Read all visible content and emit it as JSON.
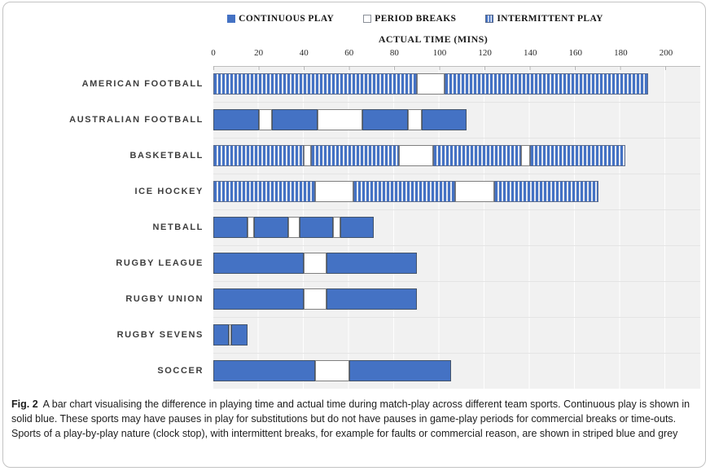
{
  "chart_data": {
    "type": "bar",
    "variant": "horizontal-stacked",
    "xlabel": "ACTUAL TIME (MINS)",
    "xlim": [
      0,
      200
    ],
    "x_ticks": [
      0,
      20,
      40,
      60,
      80,
      100,
      120,
      140,
      160,
      180,
      200
    ],
    "legend": [
      {
        "label": "CONTINUOUS PLAY",
        "swatch": "solid-blue"
      },
      {
        "label": "PERIOD BREAKS",
        "swatch": "white"
      },
      {
        "label": "INTERMITTENT PLAY",
        "swatch": "striped-blue"
      }
    ],
    "categories": [
      {
        "name": "AMERICAN FOOTBALL",
        "total_minutes": 192,
        "segments": [
          {
            "kind": "intermittent",
            "minutes": 90
          },
          {
            "kind": "break",
            "minutes": 12
          },
          {
            "kind": "intermittent",
            "minutes": 90
          }
        ]
      },
      {
        "name": "AUSTRALIAN FOOTBALL",
        "total_minutes": 112,
        "segments": [
          {
            "kind": "continuous",
            "minutes": 20
          },
          {
            "kind": "break",
            "minutes": 6
          },
          {
            "kind": "continuous",
            "minutes": 20
          },
          {
            "kind": "break",
            "minutes": 20
          },
          {
            "kind": "continuous",
            "minutes": 20
          },
          {
            "kind": "break",
            "minutes": 6
          },
          {
            "kind": "continuous",
            "minutes": 20
          }
        ]
      },
      {
        "name": "BASKETBALL",
        "total_minutes": 182,
        "segments": [
          {
            "kind": "intermittent",
            "minutes": 40
          },
          {
            "kind": "break",
            "minutes": 3
          },
          {
            "kind": "intermittent",
            "minutes": 39
          },
          {
            "kind": "break",
            "minutes": 15
          },
          {
            "kind": "intermittent",
            "minutes": 39
          },
          {
            "kind": "break",
            "minutes": 4
          },
          {
            "kind": "intermittent",
            "minutes": 42
          }
        ]
      },
      {
        "name": "ICE HOCKEY",
        "total_minutes": 170,
        "segments": [
          {
            "kind": "intermittent",
            "minutes": 45
          },
          {
            "kind": "break",
            "minutes": 17
          },
          {
            "kind": "intermittent",
            "minutes": 45
          },
          {
            "kind": "break",
            "minutes": 17
          },
          {
            "kind": "intermittent",
            "minutes": 46
          }
        ]
      },
      {
        "name": "NETBALL",
        "total_minutes": 71,
        "segments": [
          {
            "kind": "continuous",
            "minutes": 15
          },
          {
            "kind": "break",
            "minutes": 3
          },
          {
            "kind": "continuous",
            "minutes": 15
          },
          {
            "kind": "break",
            "minutes": 5
          },
          {
            "kind": "continuous",
            "minutes": 15
          },
          {
            "kind": "break",
            "minutes": 3
          },
          {
            "kind": "continuous",
            "minutes": 15
          }
        ]
      },
      {
        "name": "RUGBY LEAGUE",
        "total_minutes": 90,
        "segments": [
          {
            "kind": "continuous",
            "minutes": 40
          },
          {
            "kind": "break",
            "minutes": 10
          },
          {
            "kind": "continuous",
            "minutes": 40
          }
        ]
      },
      {
        "name": "RUGBY UNION",
        "total_minutes": 90,
        "segments": [
          {
            "kind": "continuous",
            "minutes": 40
          },
          {
            "kind": "break",
            "minutes": 10
          },
          {
            "kind": "continuous",
            "minutes": 40
          }
        ]
      },
      {
        "name": "RUGBY SEVENS",
        "total_minutes": 15,
        "segments": [
          {
            "kind": "continuous",
            "minutes": 7
          },
          {
            "kind": "break",
            "minutes": 1
          },
          {
            "kind": "continuous",
            "minutes": 7
          }
        ]
      },
      {
        "name": "SOCCER",
        "total_minutes": 105,
        "segments": [
          {
            "kind": "continuous",
            "minutes": 45
          },
          {
            "kind": "break",
            "minutes": 15
          },
          {
            "kind": "continuous",
            "minutes": 45
          }
        ]
      }
    ],
    "layout_hints": {
      "grid": "vertical gridlines every 20 mins",
      "legend_position": "top"
    }
  },
  "colors": {
    "continuous_blue": "#4472C4",
    "stripe_light": "#E4E8F0",
    "break_white": "#FFFFFF",
    "plot_background": "#F1F1F1"
  },
  "caption": {
    "label": "Fig. 2",
    "text": "A bar chart visualising the difference in playing time and actual time during match-play across different team sports. Continuous play is shown in solid blue. These sports may have pauses in play for substitutions but do not have pauses in game-play periods for commercial breaks or time-outs. Sports of a play-by-play nature (clock stop), with intermittent breaks, for example for faults or commercial reason, are shown in striped blue and grey"
  }
}
